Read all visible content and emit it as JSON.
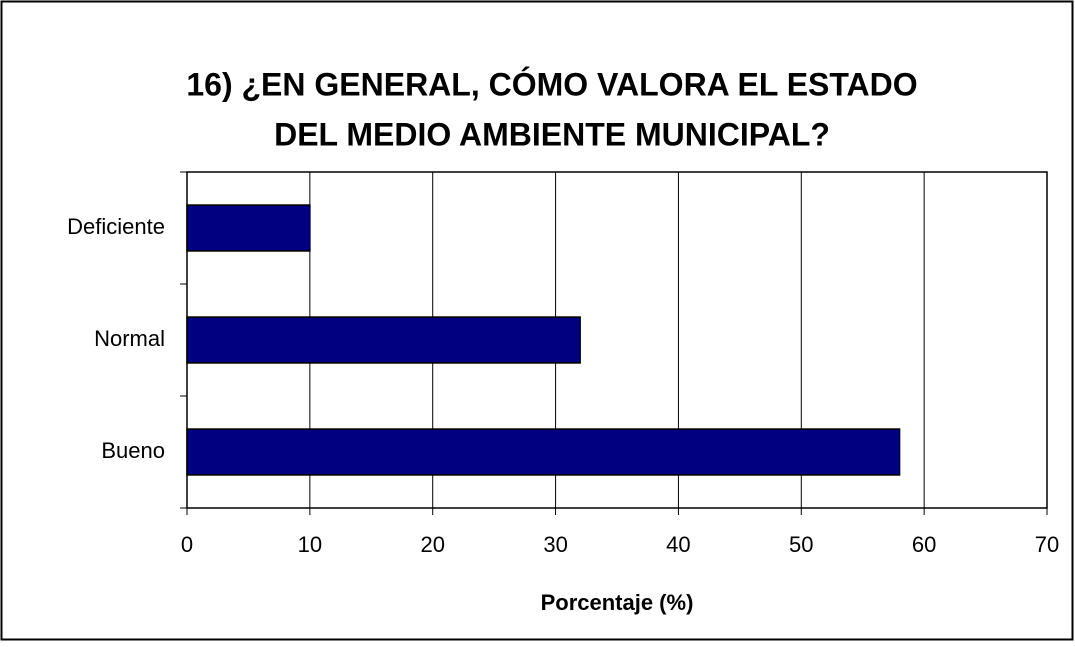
{
  "chart_data": {
    "type": "bar",
    "orientation": "horizontal",
    "title": [
      "16) ¿EN GENERAL, CÓMO VALORA EL ESTADO",
      "DEL MEDIO AMBIENTE MUNICIPAL?"
    ],
    "x_label": "Porcentaje (%)",
    "categories": [
      "Deficiente",
      "Normal",
      "Bueno"
    ],
    "values": [
      10,
      32,
      58
    ],
    "color": "#000080",
    "xlim": [
      0,
      70
    ],
    "xticks": [
      0,
      10,
      20,
      30,
      40,
      50,
      60,
      70
    ],
    "grid": true
  }
}
